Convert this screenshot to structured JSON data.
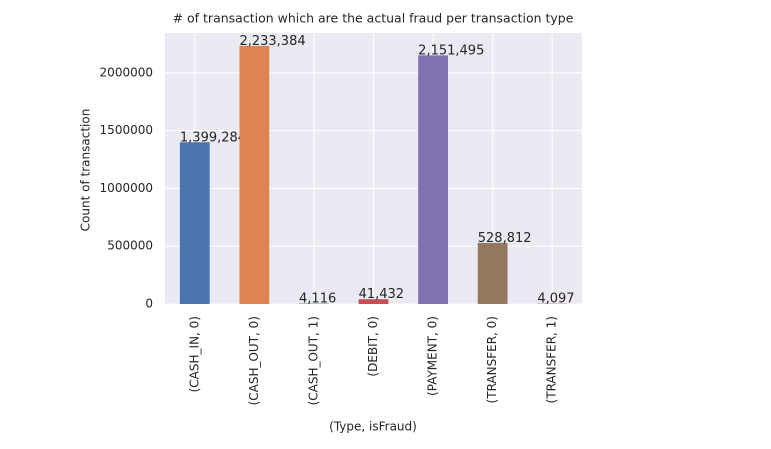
{
  "chart_data": {
    "type": "bar",
    "title": "# of transaction which are the actual fraud per transaction type",
    "x_label": "(Type, isFraud)",
    "y_label": "Count of transaction",
    "categories": [
      "(CASH_IN, 0)",
      "(CASH_OUT, 0)",
      "(CASH_OUT, 1)",
      "(DEBIT, 0)",
      "(PAYMENT, 0)",
      "(TRANSFER, 0)",
      "(TRANSFER, 1)"
    ],
    "values": [
      1399284,
      2233384,
      4116,
      41432,
      2151495,
      528812,
      4097
    ],
    "value_labels": [
      "1,399,284",
      "2,233,384",
      "4,116",
      "41,432",
      "2,151,495",
      "528,812",
      "4,097"
    ],
    "colors": [
      "#4c72b0",
      "#dd8452",
      "#55a868",
      "#c44e52",
      "#8172b3",
      "#937860",
      "#da8bc3"
    ],
    "ylim": [
      0,
      2345053
    ],
    "yticks": [
      0,
      500000,
      1000000,
      1500000,
      2000000
    ],
    "grid": true
  }
}
